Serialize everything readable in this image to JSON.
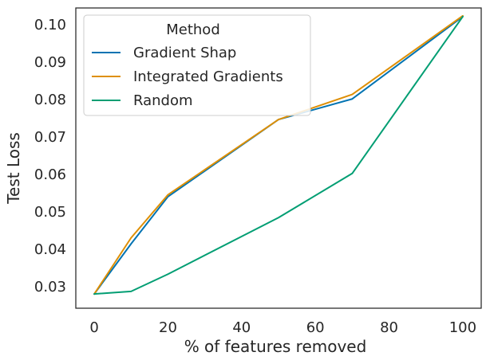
{
  "chart_data": {
    "type": "line",
    "title": "",
    "xlabel": "% of features removed",
    "ylabel": "Test Loss",
    "xlim": [
      -5,
      105
    ],
    "ylim": [
      0.0243,
      0.1045
    ],
    "xticks": [
      0,
      20,
      40,
      60,
      80,
      100
    ],
    "yticks": [
      0.03,
      0.04,
      0.05,
      0.06,
      0.07,
      0.08,
      0.09,
      0.1
    ],
    "xtick_labels": [
      "0",
      "20",
      "40",
      "60",
      "80",
      "100"
    ],
    "ytick_labels": [
      "0.03",
      "0.04",
      "0.05",
      "0.06",
      "0.07",
      "0.08",
      "0.09",
      "0.10"
    ],
    "grid": false,
    "legend": {
      "title": "Method",
      "placement": "top-left"
    },
    "series": [
      {
        "name": "Gradient Shap",
        "color": "#0173b2",
        "x": [
          0,
          10,
          20,
          50,
          70,
          100
        ],
        "y": [
          0.0281,
          0.0415,
          0.0541,
          0.0747,
          0.0802,
          0.1022
        ]
      },
      {
        "name": "Integrated Gradients",
        "color": "#de8f05",
        "x": [
          0,
          10,
          20,
          50,
          70,
          100
        ],
        "y": [
          0.0281,
          0.0431,
          0.0546,
          0.0747,
          0.0814,
          0.1024
        ]
      },
      {
        "name": "Random",
        "color": "#029e73",
        "x": [
          0,
          10,
          20,
          50,
          70,
          100
        ],
        "y": [
          0.0281,
          0.0288,
          0.0334,
          0.0485,
          0.0603,
          0.1022
        ]
      }
    ]
  }
}
